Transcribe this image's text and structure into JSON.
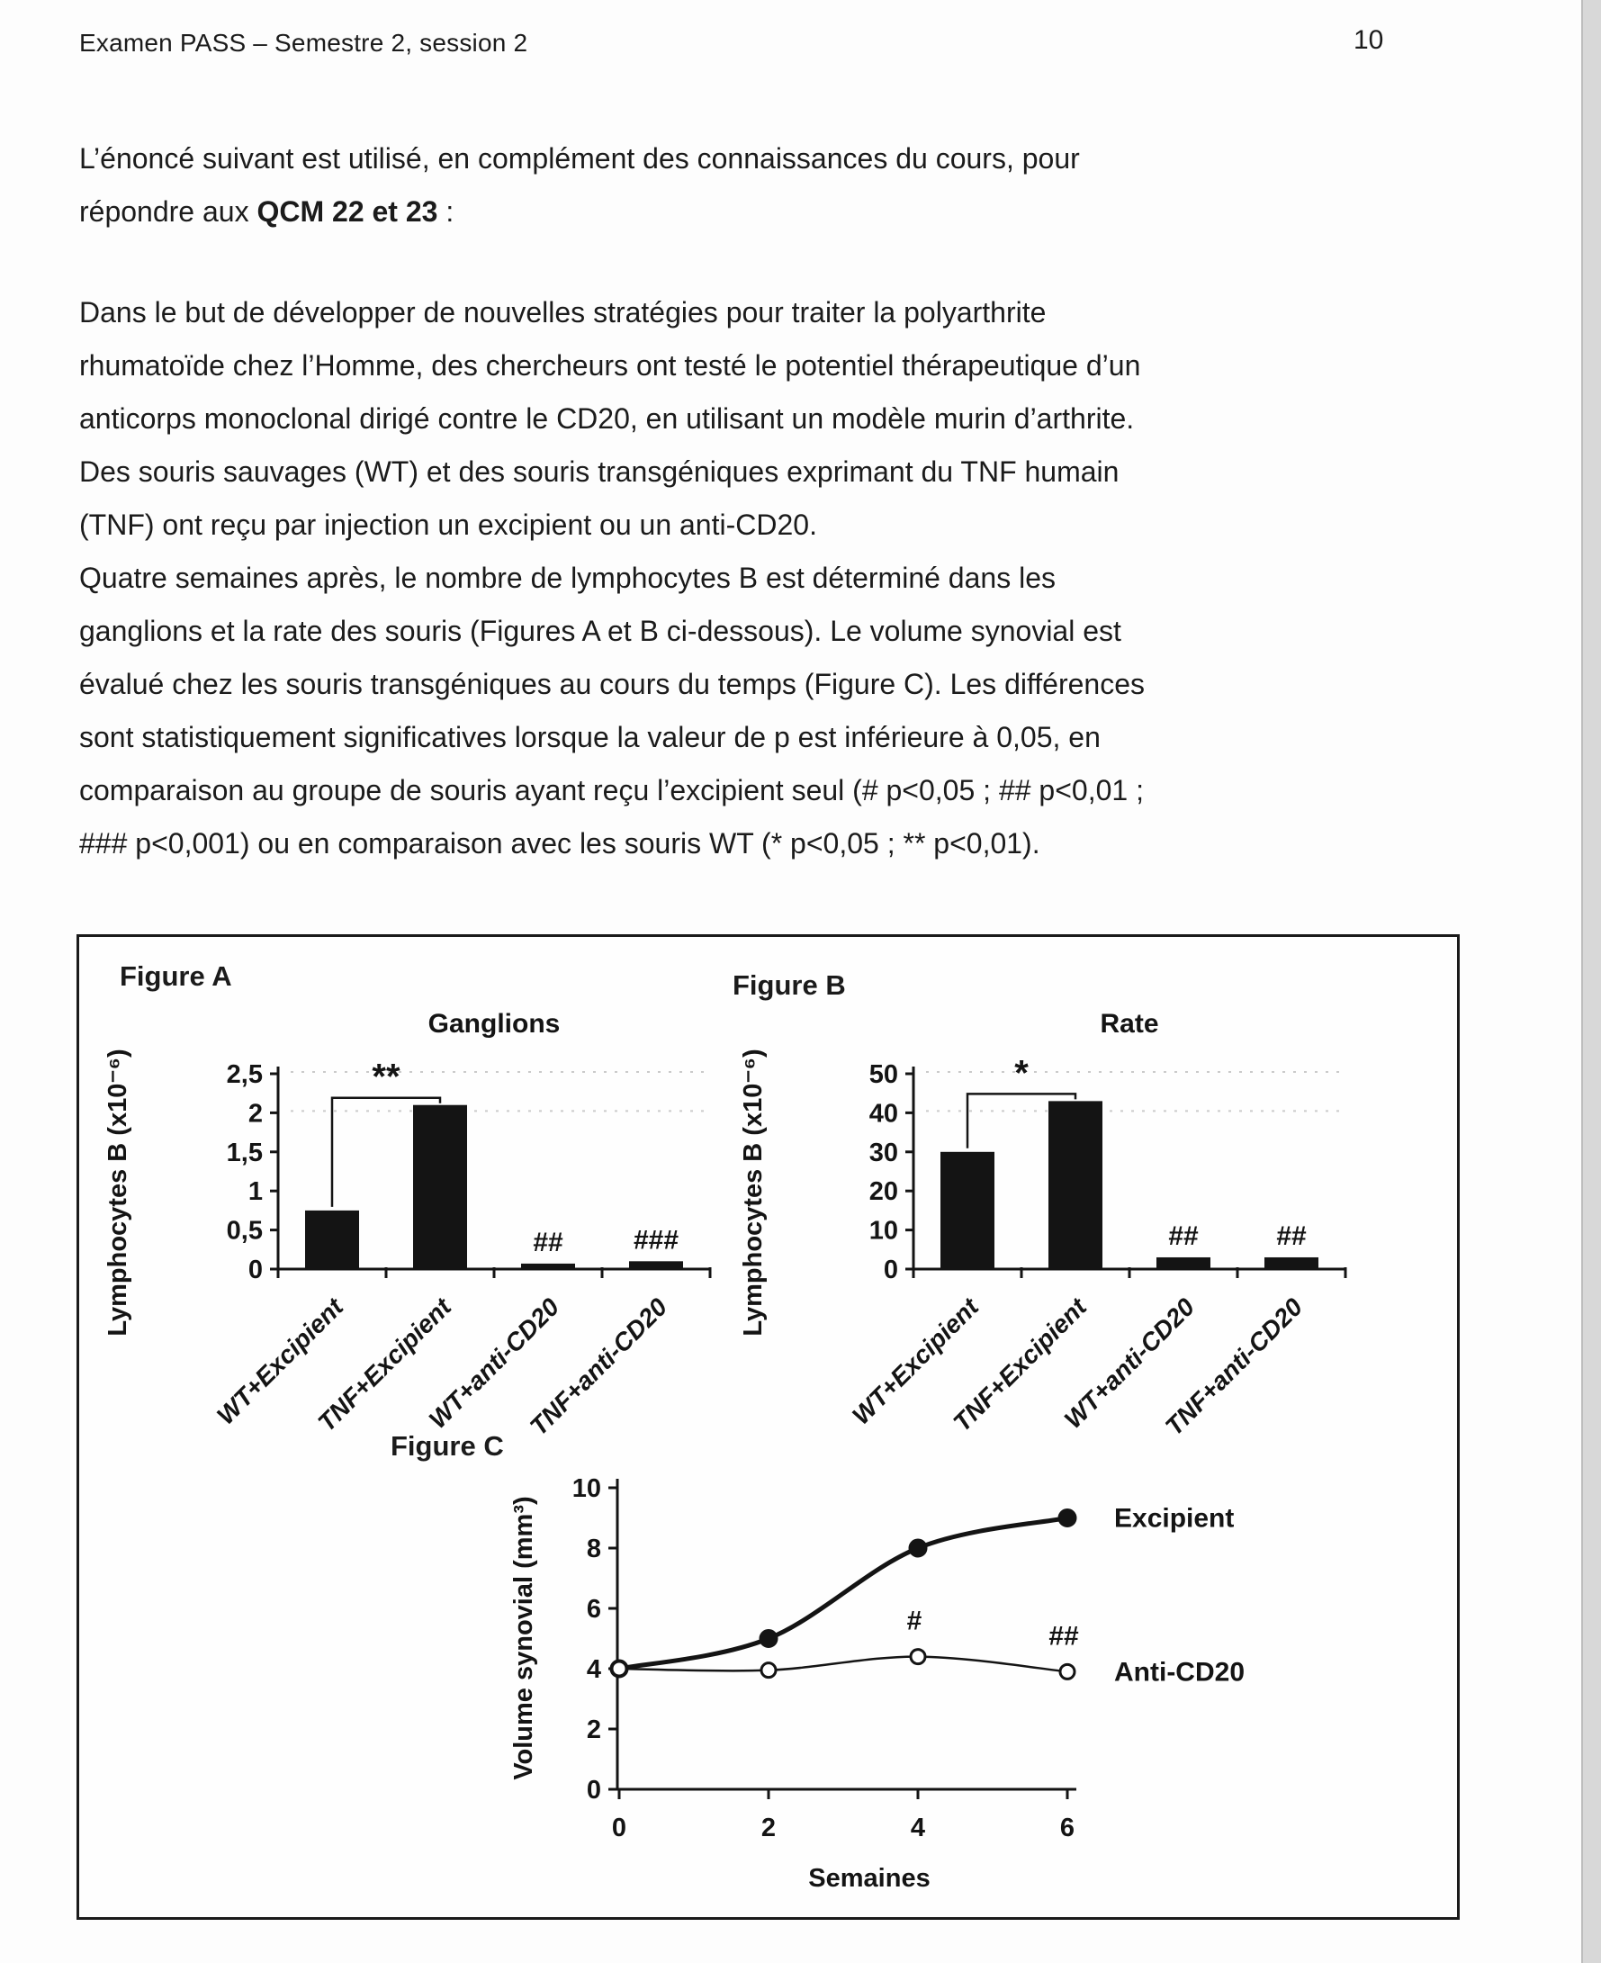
{
  "page": {
    "header_left": "Examen PASS – Semestre 2, session 2",
    "page_number": "10"
  },
  "intro": {
    "pre": "L’énoncé suivant est utilisé, en complément des connaissances du cours, pour\nrépondre aux ",
    "bold": "QCM 22 et 23",
    "post": " :"
  },
  "body": {
    "text": "Dans le but de développer de nouvelles stratégies pour traiter la polyarthrite\nrhumatoïde chez l’Homme, des chercheurs ont testé le potentiel thérapeutique d’un\nanticorps monoclonal dirigé contre le CD20, en utilisant un modèle murin d’arthrite.\nDes souris sauvages (WT) et des souris transgéniques exprimant du TNF humain\n(TNF) ont reçu par injection un excipient ou un anti-CD20.\nQuatre semaines après, le nombre de lymphocytes B est déterminé dans les\nganglions et la rate des souris (Figures A et B ci-dessous). Le volume synovial est\névalué chez les souris transgéniques au cours du temps (Figure C). Les différences\nsont statistiquement significatives lorsque la valeur de p est inférieure à 0,05, en\ncomparaison au groupe de souris ayant reçu l’excipient seul (# p<0,05 ; ## p<0,01 ;\n### p<0,001) ou en comparaison avec les souris WT (* p<0,05 ; ** p<0,01)."
  },
  "chart_data": [
    {
      "id": "figureA",
      "type": "bar",
      "figure_label": "Figure A",
      "title": "Ganglions",
      "ylabel": "Lymphocytes B (x10⁻⁶)",
      "categories": [
        "WT+Excipient",
        "TNF+Excipient",
        "WT+anti-CD20",
        "TNF+anti-CD20"
      ],
      "values": [
        0.75,
        2.1,
        0.07,
        0.1
      ],
      "bar_annotations": [
        "",
        "",
        "##",
        "###"
      ],
      "yticks": [
        0,
        0.5,
        1,
        1.5,
        2,
        2.5
      ],
      "ytick_labels": [
        "0",
        "0,5",
        "1",
        "1,5",
        "2",
        "2,5"
      ],
      "ylim": [
        0,
        2.5
      ],
      "sig_bracket": {
        "from": 0,
        "to": 1,
        "label": "**"
      },
      "bar_color": "#141414",
      "grid": false
    },
    {
      "id": "figureB",
      "type": "bar",
      "figure_label": "Figure B",
      "title": "Rate",
      "ylabel": "Lymphocytes B (x10⁻⁶)",
      "categories": [
        "WT+Excipient",
        "TNF+Excipient",
        "WT+anti-CD20",
        "TNF+anti-CD20"
      ],
      "values": [
        30,
        43,
        3,
        3
      ],
      "bar_annotations": [
        "",
        "",
        "##",
        "##"
      ],
      "yticks": [
        0,
        10,
        20,
        30,
        40,
        50
      ],
      "ytick_labels": [
        "0",
        "10",
        "20",
        "30",
        "40",
        "50"
      ],
      "ylim": [
        0,
        50
      ],
      "sig_bracket": {
        "from": 0,
        "to": 1,
        "label": "*"
      },
      "bar_color": "#141414",
      "grid": false
    },
    {
      "id": "figureC",
      "type": "line",
      "figure_label": "Figure C",
      "title": "",
      "ylabel": "Volume synovial (mm³)",
      "xlabel": "Semaines",
      "xticks": [
        0,
        2,
        4,
        6
      ],
      "yticks": [
        0,
        2,
        4,
        6,
        8,
        10
      ],
      "xlim": [
        0,
        6
      ],
      "ylim": [
        0,
        10
      ],
      "series": [
        {
          "name": "Excipient",
          "marker": "filled",
          "x": [
            0,
            2,
            4,
            6
          ],
          "y": [
            4,
            5,
            8,
            9
          ]
        },
        {
          "name": "Anti-CD20",
          "marker": "open",
          "x": [
            0,
            2,
            4,
            6
          ],
          "y": [
            4,
            3.95,
            4.4,
            3.9
          ]
        }
      ],
      "point_annotations": [
        {
          "series": 1,
          "index": 2,
          "label": "#"
        },
        {
          "series": 1,
          "index": 3,
          "label": "##"
        }
      ],
      "line_color": "#141414",
      "legend_position": "right"
    }
  ]
}
